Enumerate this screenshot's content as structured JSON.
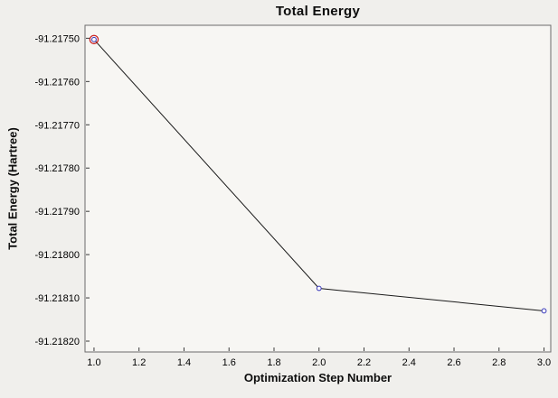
{
  "window": {
    "background": "#f0efec"
  },
  "chart_data": {
    "type": "line",
    "title": "Total Energy",
    "xlabel": "Optimization Step Number",
    "ylabel": "Total Energy (Hartree)",
    "x": [
      1.0,
      2.0,
      3.0
    ],
    "y": [
      -91.217503,
      -91.218078,
      -91.21813
    ],
    "xlim": [
      0.96,
      3.03
    ],
    "ylim": [
      -91.218225,
      -91.21747
    ],
    "x_ticks": [
      1.0,
      1.2,
      1.4,
      1.6,
      1.8,
      2.0,
      2.2,
      2.4,
      2.6,
      2.8,
      3.0
    ],
    "x_tick_labels": [
      "1.0",
      "1.2",
      "1.4",
      "1.6",
      "1.8",
      "2.0",
      "2.2",
      "2.4",
      "2.6",
      "2.8",
      "3.0"
    ],
    "y_ticks": [
      -91.2175,
      -91.2176,
      -91.2177,
      -91.2178,
      -91.2179,
      -91.218,
      -91.2181,
      -91.2182
    ],
    "y_tick_labels": [
      "-91.21750",
      "-91.21760",
      "-91.21770",
      "-91.21780",
      "-91.21790",
      "-91.21800",
      "-91.21810",
      "-91.21820"
    ],
    "grid": false,
    "selected_point_index": 0,
    "styles": {
      "line_color": "#1a1a1a",
      "marker_color": "#3434b8",
      "marker_fill": "#ffffff",
      "selected_marker_color": "#cc2222",
      "plot_bg": "#f7f6f3",
      "border_color": "#6b6b6b",
      "tick_color": "#3a3a3a",
      "text_color": "#000000"
    }
  }
}
